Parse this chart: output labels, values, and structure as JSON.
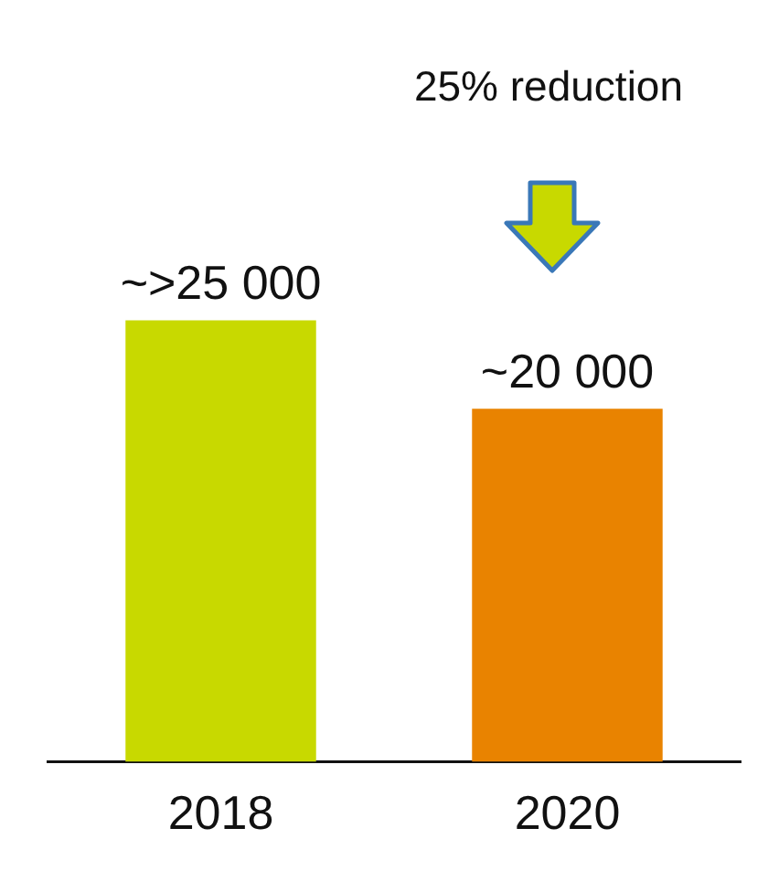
{
  "chart_data": {
    "type": "bar",
    "categories": [
      "2018",
      "2020"
    ],
    "values": [
      25000,
      20000
    ],
    "colors": [
      "#c8d900",
      "#e98300"
    ],
    "value_labels": [
      "~>25 000",
      "~20 000"
    ],
    "grid": false,
    "legend": false,
    "tick_labels": "x",
    "annotations": [
      "25% reduction"
    ]
  }
}
